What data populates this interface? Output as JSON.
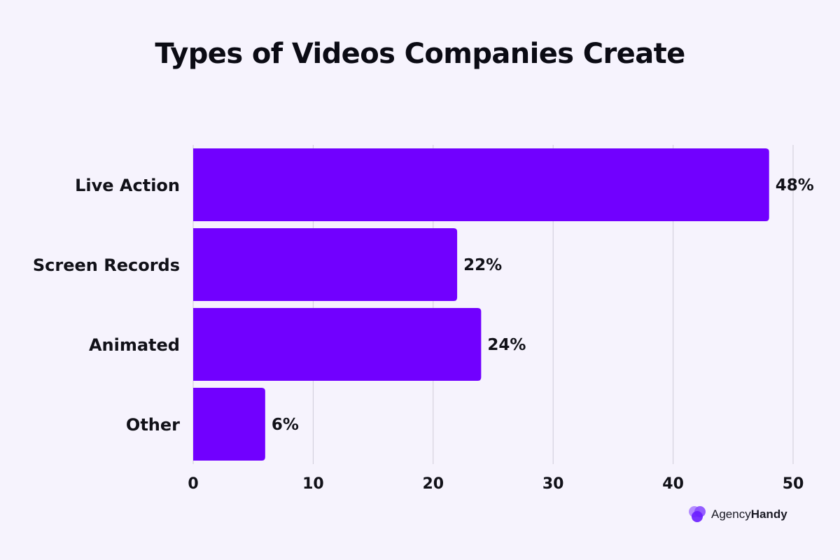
{
  "colors": {
    "background": "#f6f3fd",
    "bar": "#7100ff",
    "grid": "#cfcbd8",
    "text": "#111118"
  },
  "brand": {
    "name_light": "Agency",
    "name_bold": "Handy",
    "icon": "agencyhandy-logo-icon"
  },
  "chart_data": {
    "type": "bar",
    "orientation": "horizontal",
    "title": "Types of Videos Companies Create",
    "categories": [
      "Live Action",
      "Screen Records",
      "Animated",
      "Other"
    ],
    "values": [
      48,
      22,
      24,
      6
    ],
    "value_labels": [
      "48%",
      "22%",
      "24%",
      "6%"
    ],
    "x_ticks": [
      0,
      10,
      20,
      30,
      40,
      50
    ],
    "xlim": [
      0,
      50
    ],
    "xlabel": "",
    "ylabel": "",
    "grid": true,
    "legend": "none"
  }
}
